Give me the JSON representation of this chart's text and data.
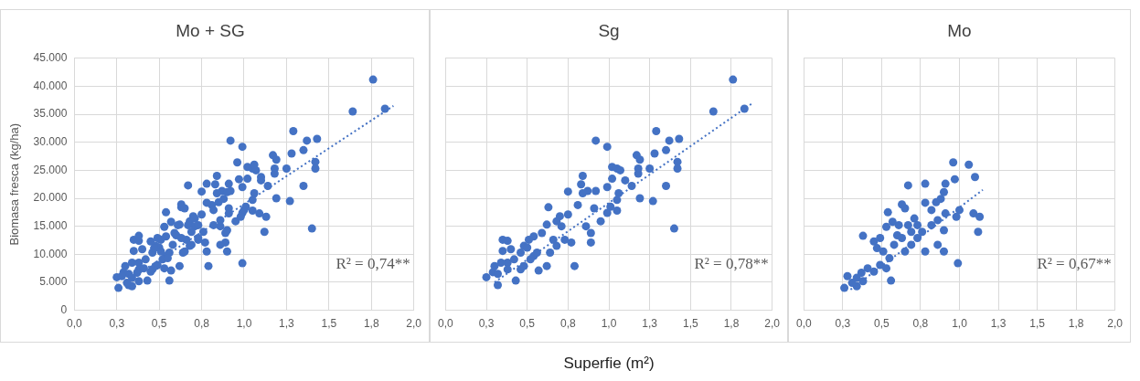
{
  "chart_data": [
    {
      "type": "scatter",
      "title": "Mo + SG",
      "ylabel": "Biomasa fresca (kg/ha)",
      "marker": "circle",
      "grid": true,
      "xlim": [
        0,
        2
      ],
      "xticks": [
        {
          "value": 0,
          "label": "0,0"
        },
        {
          "value": 0.25,
          "label": "0,3"
        },
        {
          "value": 0.5,
          "label": "0,5"
        },
        {
          "value": 0.75,
          "label": "0,8"
        },
        {
          "value": 1,
          "label": "1,0"
        },
        {
          "value": 1.25,
          "label": "1,3"
        },
        {
          "value": 1.5,
          "label": "1,5"
        },
        {
          "value": 1.75,
          "label": "1,8"
        },
        {
          "value": 2,
          "label": "2,0"
        }
      ],
      "ylim": [
        0,
        45000
      ],
      "yticks": [
        0,
        {
          "value": 5000,
          "label": "5.000"
        },
        {
          "value": 10000,
          "label": "10.000"
        },
        {
          "value": 15000,
          "label": "15.000"
        },
        {
          "value": 20000,
          "label": "20.000"
        },
        {
          "value": 25000,
          "label": "25.000"
        },
        {
          "value": 30000,
          "label": "30.000"
        },
        {
          "value": 35000,
          "label": "35.000"
        },
        {
          "value": 40000,
          "label": "40.000"
        },
        {
          "value": 45000,
          "label": "45.000"
        }
      ],
      "annotations": [
        "R² = 0,74**"
      ],
      "series": [
        {
          "type": "scatter",
          "color": "#4472c4",
          "x": [
            1.76,
            1.83,
            1.64,
            1.29,
            0.92,
            0.99,
            1.37,
            1.43,
            1.35,
            1.28,
            1.17,
            1.19,
            1.42,
            1.42,
            1.25,
            1.18,
            1.18,
            1.02,
            1.05,
            1.07,
            1.1,
            1.14,
            1.02,
            0.99,
            1.35,
            1.19,
            1.27,
            1.4,
            0.84,
            0.83,
            0.92,
            0.87,
            0.84,
            0.75,
            1.06,
            1.05,
            1.01,
            0.99,
            1.05,
            0.91,
            0.81,
            0.63,
            0.95,
            0.89,
            0.89,
            0.86,
            0.75,
            0.7,
            0.68,
            0.77,
            0.79,
            0.71,
            0.62,
            0.59,
            0.54,
            0.68,
            0.64,
            0.62,
            0.51,
            0.48,
            0.46,
            0.54,
            0.57,
            0.35,
            0.38,
            0.35,
            0.4,
            0.42,
            0.38,
            0.34,
            0.46,
            0.43,
            0.48,
            0.3,
            0.29,
            0.25,
            0.32,
            0.32,
            0.38,
            0.52,
            0.56,
            0.5,
            0.73,
            0.66,
            0.96,
            1.06,
            1.1,
            0.97,
            0.91,
            0.67,
            0.78,
            0.9,
            0.88,
            0.85,
            0.78,
            0.63,
            1.0,
            0.98,
            1.09,
            1.13,
            1.12,
            0.91,
            0.82,
            0.54,
            0.65,
            0.9,
            0.71,
            0.67,
            0.61,
            0.76,
            0.78,
            0.86,
            0.9,
            0.99,
            0.57,
            0.53,
            0.6,
            0.38,
            0.45,
            0.49,
            0.51,
            0.55,
            0.47,
            0.49,
            0.53,
            0.56,
            0.45,
            0.41,
            0.37,
            0.34,
            0.28,
            0.26,
            0.34,
            0.31,
            0.38,
            0.65,
            0.69,
            0.73,
            0.69,
            0.63,
            0.82,
            0.86,
            0.73,
            0.58
          ],
          "values": [
            41200,
            36000,
            35500,
            32000,
            30300,
            29200,
            30300,
            30600,
            28600,
            28000,
            27700,
            26900,
            26500,
            25300,
            25300,
            25300,
            24400,
            25600,
            25300,
            25000,
            23200,
            22200,
            23500,
            22000,
            22200,
            20000,
            19500,
            14600,
            24000,
            22500,
            21300,
            21300,
            20900,
            21200,
            20900,
            19700,
            18500,
            17400,
            17800,
            18200,
            18800,
            18400,
            15900,
            12100,
            13800,
            15000,
            17100,
            16800,
            15900,
            12100,
            7900,
            15000,
            15300,
            13800,
            13200,
            11500,
            10300,
            7900,
            12600,
            11500,
            10300,
            9700,
            7100,
            12600,
            12400,
            10600,
            10900,
            9100,
            8500,
            8500,
            7300,
            5300,
            7900,
            7900,
            6800,
            5900,
            4500,
            6500,
            7300,
            9100,
            10300,
            11200,
            12600,
            12600,
            26400,
            26000,
            23800,
            23400,
            22600,
            22300,
            22600,
            21100,
            19900,
            19300,
            19200,
            18900,
            17900,
            16700,
            17300,
            16700,
            14000,
            17300,
            17900,
            17500,
            18200,
            14300,
            16400,
            15200,
            15200,
            14000,
            10500,
            11700,
            10500,
            8400,
            15800,
            14900,
            13400,
            13300,
            12300,
            12900,
            10500,
            9300,
            11100,
            8100,
            7500,
            5300,
            6900,
            7500,
            6700,
            5800,
            6100,
            4000,
            4300,
            4900,
            5200,
            10500,
            11700,
            12900,
            14000,
            12900,
            15200,
            16100,
            15200,
            11700
          ]
        },
        {
          "type": "line",
          "color": "#4472c4",
          "marker": "none",
          "line_style": "dotted",
          "x": [
            0.3,
            1.88
          ],
          "values": [
            5000,
            36500
          ]
        }
      ]
    },
    {
      "type": "scatter",
      "title": "Sg",
      "xlabel": "Superfie  (m²)",
      "marker": "circle",
      "grid": true,
      "tick_labels": "x",
      "xlim": [
        0,
        2
      ],
      "xticks": [
        {
          "value": 0,
          "label": "0,0"
        },
        {
          "value": 0.25,
          "label": "0,3"
        },
        {
          "value": 0.5,
          "label": "0,5"
        },
        {
          "value": 0.75,
          "label": "0,8"
        },
        {
          "value": 1,
          "label": "1,0"
        },
        {
          "value": 1.25,
          "label": "1,3"
        },
        {
          "value": 1.5,
          "label": "1,5"
        },
        {
          "value": 1.75,
          "label": "1,8"
        },
        {
          "value": 2,
          "label": "2,0"
        }
      ],
      "ylim": [
        0,
        45000
      ],
      "yticks": [
        0,
        5000,
        10000,
        15000,
        20000,
        25000,
        30000,
        35000,
        40000,
        45000
      ],
      "annotations": [
        "R² = 0,78**"
      ],
      "series": [
        {
          "type": "scatter",
          "color": "#4472c4",
          "x": [
            1.76,
            1.83,
            1.64,
            1.29,
            0.92,
            0.99,
            1.37,
            1.43,
            1.35,
            1.28,
            1.17,
            1.19,
            1.42,
            1.42,
            1.25,
            1.18,
            1.18,
            1.02,
            1.05,
            1.07,
            1.1,
            1.14,
            1.02,
            0.99,
            1.35,
            1.19,
            1.27,
            1.4,
            0.84,
            0.83,
            0.92,
            0.87,
            0.84,
            0.75,
            1.06,
            1.05,
            1.01,
            0.99,
            1.05,
            0.91,
            0.81,
            0.63,
            0.95,
            0.89,
            0.89,
            0.86,
            0.75,
            0.7,
            0.68,
            0.77,
            0.79,
            0.71,
            0.62,
            0.59,
            0.54,
            0.68,
            0.64,
            0.62,
            0.51,
            0.48,
            0.46,
            0.54,
            0.57,
            0.35,
            0.38,
            0.35,
            0.4,
            0.42,
            0.38,
            0.34,
            0.46,
            0.43,
            0.48,
            0.3,
            0.29,
            0.25,
            0.32,
            0.32,
            0.38,
            0.52,
            0.56,
            0.5,
            0.73,
            0.66
          ],
          "values": [
            41200,
            36000,
            35500,
            32000,
            30300,
            29200,
            30300,
            30600,
            28600,
            28000,
            27700,
            26900,
            26500,
            25300,
            25300,
            25300,
            24400,
            25600,
            25300,
            25000,
            23200,
            22200,
            23500,
            22000,
            22200,
            20000,
            19500,
            14600,
            24000,
            22500,
            21300,
            21300,
            20900,
            21200,
            20900,
            19700,
            18500,
            17400,
            17800,
            18200,
            18800,
            18400,
            15900,
            12100,
            13800,
            15000,
            17100,
            16800,
            15900,
            12100,
            7900,
            15000,
            15300,
            13800,
            13200,
            11500,
            10300,
            7900,
            12600,
            11500,
            10300,
            9700,
            7100,
            12600,
            12400,
            10600,
            10900,
            9100,
            8500,
            8500,
            7300,
            5300,
            7900,
            7900,
            6800,
            5900,
            4500,
            6500,
            7300,
            9100,
            10300,
            11200,
            12600,
            12600
          ]
        },
        {
          "type": "line",
          "color": "#4472c4",
          "marker": "none",
          "line_style": "dotted",
          "x": [
            0.3,
            1.88
          ],
          "values": [
            5000,
            37000
          ]
        }
      ]
    },
    {
      "type": "scatter",
      "title": "Mo",
      "marker": "circle",
      "grid": true,
      "tick_labels": "x",
      "xlim": [
        0,
        2
      ],
      "xticks": [
        {
          "value": 0,
          "label": "0,0"
        },
        {
          "value": 0.25,
          "label": "0,3"
        },
        {
          "value": 0.5,
          "label": "0,5"
        },
        {
          "value": 0.75,
          "label": "0,8"
        },
        {
          "value": 1,
          "label": "1,0"
        },
        {
          "value": 1.25,
          "label": "1,3"
        },
        {
          "value": 1.5,
          "label": "1,5"
        },
        {
          "value": 1.75,
          "label": "1,8"
        },
        {
          "value": 2,
          "label": "2,0"
        }
      ],
      "ylim": [
        0,
        45000
      ],
      "yticks": [
        0,
        5000,
        10000,
        15000,
        20000,
        25000,
        30000,
        35000,
        40000,
        45000
      ],
      "annotations": [
        "R² = 0,67**"
      ],
      "series": [
        {
          "type": "scatter",
          "color": "#4472c4",
          "x": [
            0.96,
            1.06,
            1.1,
            0.97,
            0.91,
            0.67,
            0.78,
            0.9,
            0.88,
            0.85,
            0.78,
            0.63,
            1.0,
            0.98,
            1.09,
            1.13,
            1.12,
            0.91,
            0.82,
            0.54,
            0.65,
            0.9,
            0.71,
            0.67,
            0.61,
            0.76,
            0.78,
            0.86,
            0.9,
            0.99,
            0.57,
            0.53,
            0.6,
            0.38,
            0.45,
            0.49,
            0.51,
            0.55,
            0.47,
            0.49,
            0.53,
            0.56,
            0.45,
            0.41,
            0.37,
            0.34,
            0.28,
            0.26,
            0.34,
            0.31,
            0.38,
            0.65,
            0.69,
            0.73,
            0.69,
            0.63,
            0.82,
            0.86,
            0.73,
            0.58
          ],
          "values": [
            26400,
            26000,
            23800,
            23400,
            22600,
            22300,
            22600,
            21100,
            19900,
            19300,
            19200,
            18900,
            17900,
            16700,
            17300,
            16700,
            14000,
            17300,
            17900,
            17500,
            18200,
            14300,
            16400,
            15200,
            15200,
            14000,
            10500,
            11700,
            10500,
            8400,
            15800,
            14900,
            13400,
            13300,
            12300,
            12900,
            10500,
            9300,
            11100,
            8100,
            7500,
            5300,
            6900,
            7500,
            6700,
            5800,
            6100,
            4000,
            4300,
            4900,
            5200,
            10500,
            11700,
            12900,
            14000,
            12900,
            15200,
            16100,
            15200,
            11700
          ]
        },
        {
          "type": "line",
          "color": "#4472c4",
          "marker": "none",
          "line_style": "dotted",
          "x": [
            0.3,
            1.15
          ],
          "values": [
            3700,
            21500
          ]
        }
      ]
    }
  ]
}
